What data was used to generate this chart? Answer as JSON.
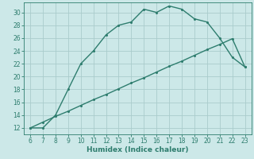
{
  "xlabel": "Humidex (Indice chaleur)",
  "ylabel": "",
  "bg_color": "#cce8e8",
  "grid_color": "#aacccc",
  "line_color": "#2e7d6e",
  "xlim": [
    5.5,
    23.5
  ],
  "ylim": [
    11,
    31.5
  ],
  "xticks": [
    6,
    7,
    8,
    9,
    10,
    11,
    12,
    13,
    14,
    15,
    16,
    17,
    18,
    19,
    20,
    21,
    22,
    23
  ],
  "yticks": [
    12,
    14,
    16,
    18,
    20,
    22,
    24,
    26,
    28,
    30
  ],
  "curve1_x": [
    6,
    7,
    8,
    9,
    10,
    11,
    12,
    13,
    14,
    15,
    16,
    17,
    18,
    19,
    20,
    21,
    22,
    23
  ],
  "curve1_y": [
    12,
    12,
    14,
    18,
    22,
    24,
    26.5,
    28,
    28.5,
    30.5,
    30,
    31,
    30.5,
    29,
    28.5,
    26,
    23,
    21.5
  ],
  "curve2_x": [
    6,
    7,
    8,
    9,
    10,
    11,
    12,
    13,
    14,
    15,
    16,
    17,
    18,
    19,
    20,
    21,
    22,
    23
  ],
  "curve2_y": [
    12,
    12.9,
    13.8,
    14.6,
    15.5,
    16.4,
    17.2,
    18.1,
    19.0,
    19.8,
    20.7,
    21.6,
    22.4,
    23.3,
    24.2,
    25.0,
    25.9,
    21.5
  ],
  "xlabel_fontsize": 6.5,
  "tick_fontsize": 5.5,
  "linewidth": 1.0,
  "markersize": 2.2
}
